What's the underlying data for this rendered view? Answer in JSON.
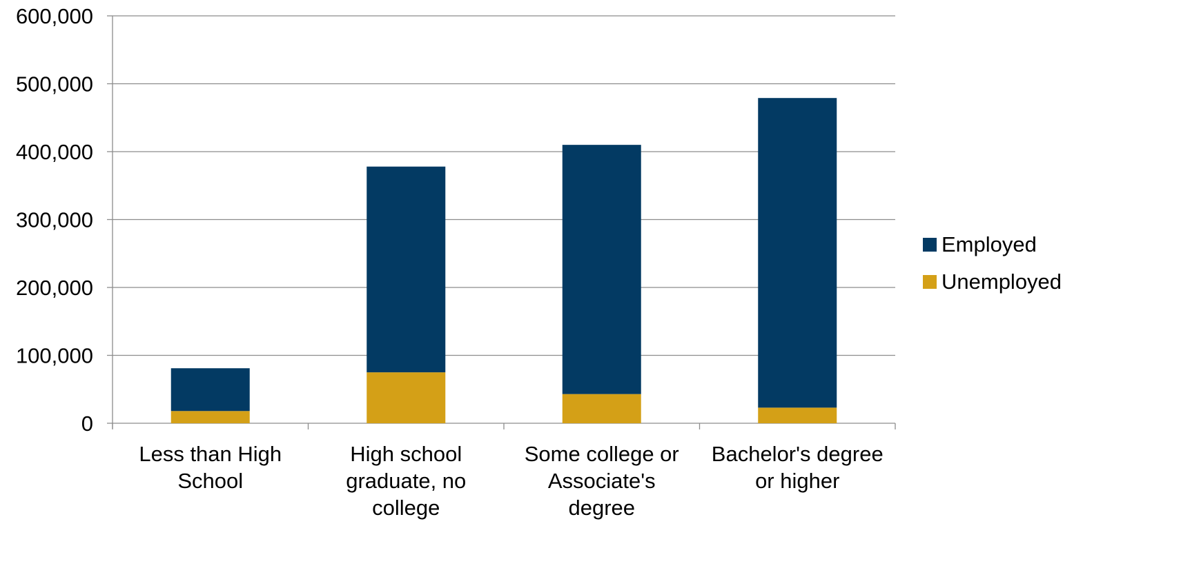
{
  "chart_data": {
    "type": "bar",
    "stacked": true,
    "categories": [
      [
        "Less than High",
        "School"
      ],
      [
        "High school",
        "graduate, no",
        "college"
      ],
      [
        "Some college or",
        "Associate's",
        "degree"
      ],
      [
        "Bachelor's degree",
        "or higher"
      ]
    ],
    "series": [
      {
        "name": "Unemployed",
        "color": "#D4A017",
        "values": [
          18000,
          75000,
          43000,
          23000
        ]
      },
      {
        "name": "Employed",
        "color": "#033A63",
        "values": [
          63000,
          303000,
          367000,
          456000
        ]
      }
    ],
    "legend_order": [
      "Employed",
      "Unemployed"
    ],
    "legend_position": "right",
    "ylim": [
      0,
      600000
    ],
    "y_ticks": [
      "0",
      "100,000",
      "200,000",
      "300,000",
      "400,000",
      "500,000",
      "600,000"
    ],
    "grid": true,
    "title": "",
    "xlabel": "",
    "ylabel": ""
  }
}
